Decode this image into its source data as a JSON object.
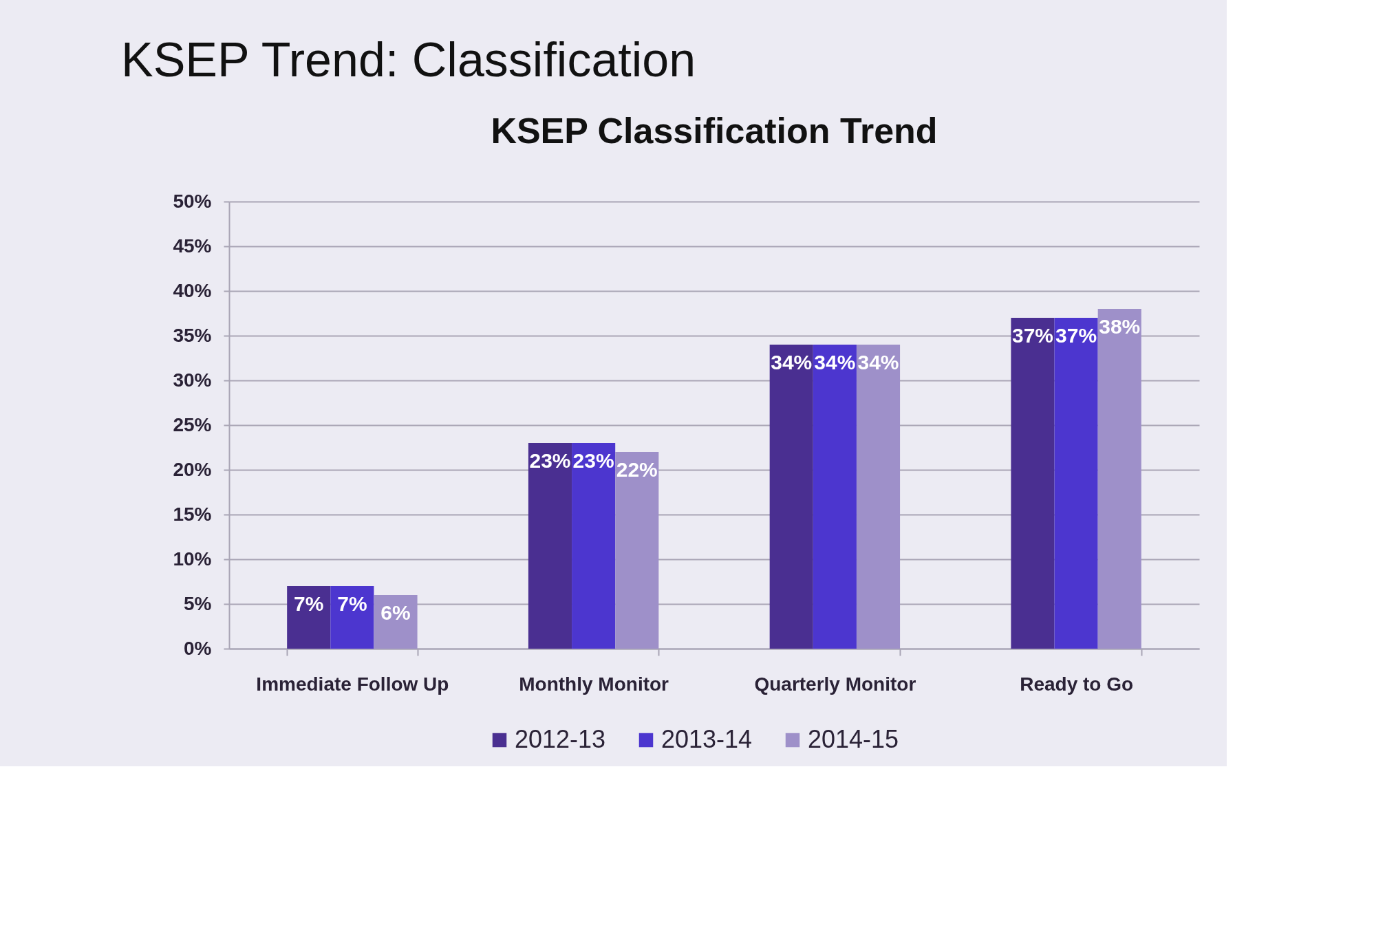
{
  "chart_data": {
    "type": "bar",
    "title": "KSEP Trend: Classification",
    "subtitle": "KSEP Classification Trend",
    "categories": [
      "Immediate Follow Up",
      "Monthly Monitor",
      "Quarterly Monitor",
      "Ready to Go"
    ],
    "series": [
      {
        "name": "2012-13",
        "color": "#4a2f91",
        "values": [
          7,
          23,
          34,
          37
        ],
        "value_labels": [
          "7%",
          "23%",
          "34%",
          "37%"
        ]
      },
      {
        "name": "2013-14",
        "color": "#4c36cf",
        "values": [
          7,
          23,
          34,
          37
        ],
        "value_labels": [
          "7%",
          "23%",
          "34%",
          "37%"
        ]
      },
      {
        "name": "2014-15",
        "color": "#9e90c9",
        "values": [
          6,
          22,
          34,
          38
        ],
        "value_labels": [
          "6%",
          "22%",
          "34%",
          "38%"
        ]
      }
    ],
    "ylim": [
      0,
      50
    ],
    "yticks": [
      {
        "value": 0,
        "label": "0%"
      },
      {
        "value": 5,
        "label": "5%"
      },
      {
        "value": 10,
        "label": "10%"
      },
      {
        "value": 15,
        "label": "15%"
      },
      {
        "value": 20,
        "label": "20%"
      },
      {
        "value": 25,
        "label": "25%"
      },
      {
        "value": 30,
        "label": "30%"
      },
      {
        "value": 35,
        "label": "35%"
      },
      {
        "value": 40,
        "label": "40%"
      },
      {
        "value": 45,
        "label": "45%"
      },
      {
        "value": 50,
        "label": "50%"
      }
    ],
    "grid": "y",
    "legend": "bottom"
  }
}
